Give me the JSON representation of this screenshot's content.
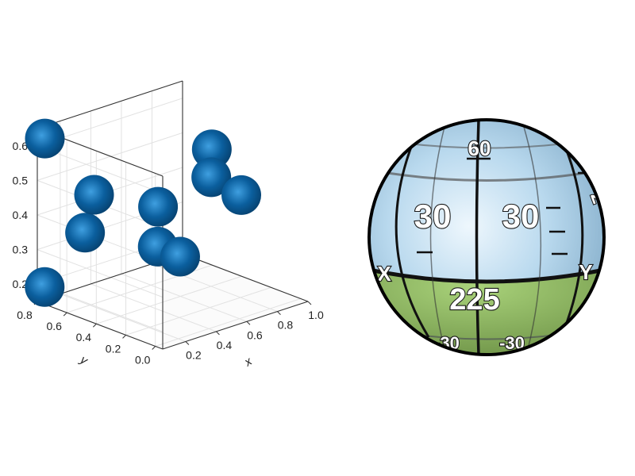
{
  "chart_data": [
    {
      "type": "scatter",
      "dimension": "3d",
      "marker": "sphere",
      "color": "#0b5f9e",
      "xlabel": "x",
      "ylabel": "y",
      "zlabel": "",
      "xlim": [
        0.05,
        1.0
      ],
      "ylim": [
        -0.05,
        0.8
      ],
      "zlim": [
        0.15,
        0.65
      ],
      "xticks": [
        "0.2",
        "0.4",
        "0.6",
        "0.8",
        "1.0"
      ],
      "yticks": [
        "0.0",
        "0.2",
        "0.4",
        "0.6",
        "0.8"
      ],
      "zticks": [
        "0.2",
        "0.3",
        "0.4",
        "0.5",
        "0.6"
      ],
      "grid": true,
      "points": [
        {
          "x": 0.08,
          "y": 0.78,
          "z": 0.62
        },
        {
          "x": 0.18,
          "y": 0.55,
          "z": 0.48
        },
        {
          "x": 0.15,
          "y": 0.58,
          "z": 0.37
        },
        {
          "x": 0.05,
          "y": 0.75,
          "z": 0.2
        },
        {
          "x": 0.55,
          "y": 0.5,
          "z": 0.4
        },
        {
          "x": 0.5,
          "y": 0.45,
          "z": 0.3
        },
        {
          "x": 0.55,
          "y": 0.35,
          "z": 0.28
        },
        {
          "x": 0.95,
          "y": 0.55,
          "z": 0.5
        },
        {
          "x": 0.85,
          "y": 0.45,
          "z": 0.45
        },
        {
          "x": 0.95,
          "y": 0.35,
          "z": 0.4
        }
      ]
    },
    {
      "type": "other",
      "description_labels": {
        "top": "60",
        "upper_left": "30",
        "upper_right": "30",
        "equator": "225",
        "left_edge": "X",
        "right_edge": "Y",
        "right_partial": "2",
        "bottom_left": "-30",
        "bottom_right": "-30"
      },
      "colors": {
        "sky": "#a9cfe8",
        "ground": "#9ac36a",
        "outline": "#000000"
      }
    }
  ]
}
